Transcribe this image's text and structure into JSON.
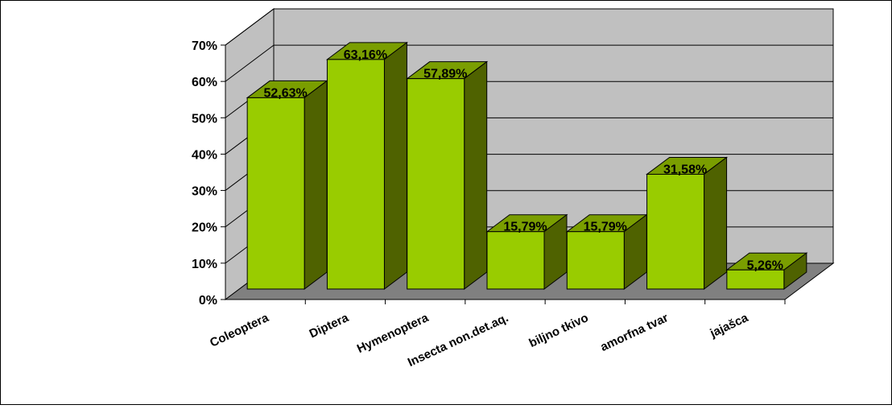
{
  "chart_data": {
    "type": "bar",
    "style": "3d-column",
    "categories": [
      "Coleoptera",
      "Diptera",
      "Hymenoptera",
      "Insecta non.det.aq.",
      "biljno tkivo",
      "amorfna tvar",
      "jajašca"
    ],
    "values": [
      52.63,
      63.16,
      57.89,
      15.79,
      15.79,
      31.58,
      5.26
    ],
    "data_labels": [
      "52,63%",
      "63,16%",
      "57,89%",
      "15,79%",
      "15,79%",
      "31,58%",
      "5,26%"
    ],
    "y_ticks": [
      "0%",
      "10%",
      "20%",
      "30%",
      "40%",
      "50%",
      "60%",
      "70%"
    ],
    "ylim": [
      0,
      70
    ],
    "grid": true,
    "legend": "none",
    "title": "",
    "xlabel": "",
    "ylabel": "",
    "colors": {
      "bar_front": "#99CC00",
      "bar_side": "#4F6200",
      "bar_top": "#7A9E00",
      "wall": "#C0C0C0",
      "floor": "#808080",
      "gridline": "#000000",
      "border": "#000000"
    }
  }
}
